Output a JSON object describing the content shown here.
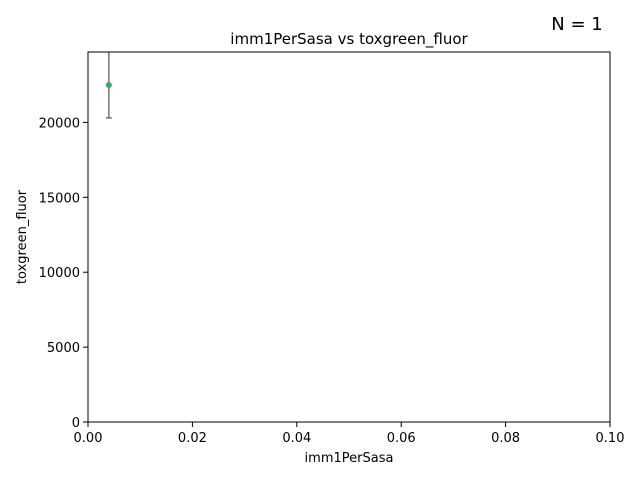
{
  "chart_data": {
    "type": "scatter",
    "title": "imm1PerSasa vs toxgreen_fluor",
    "xlabel": "imm1PerSasa",
    "ylabel": "toxgreen_fluor",
    "annotation": "N = 1",
    "xlim": [
      0,
      0.1
    ],
    "ylim": [
      0,
      24700
    ],
    "xticks": [
      0.0,
      0.02,
      0.04,
      0.06,
      0.08,
      0.1
    ],
    "xtick_labels": [
      "0.00",
      "0.02",
      "0.04",
      "0.06",
      "0.08",
      "0.10"
    ],
    "yticks": [
      0,
      5000,
      10000,
      15000,
      20000
    ],
    "ytick_labels": [
      "0",
      "5000",
      "10000",
      "15000",
      "20000"
    ],
    "grid": false,
    "series": [
      {
        "points": [
          {
            "x": 0.004,
            "y": 22500,
            "yerr_low": 20300,
            "yerr_high": 24700
          }
        ]
      }
    ],
    "colors": {
      "point": "#3aaa6a",
      "errorbar": "#555555",
      "axis": "#000000"
    }
  }
}
